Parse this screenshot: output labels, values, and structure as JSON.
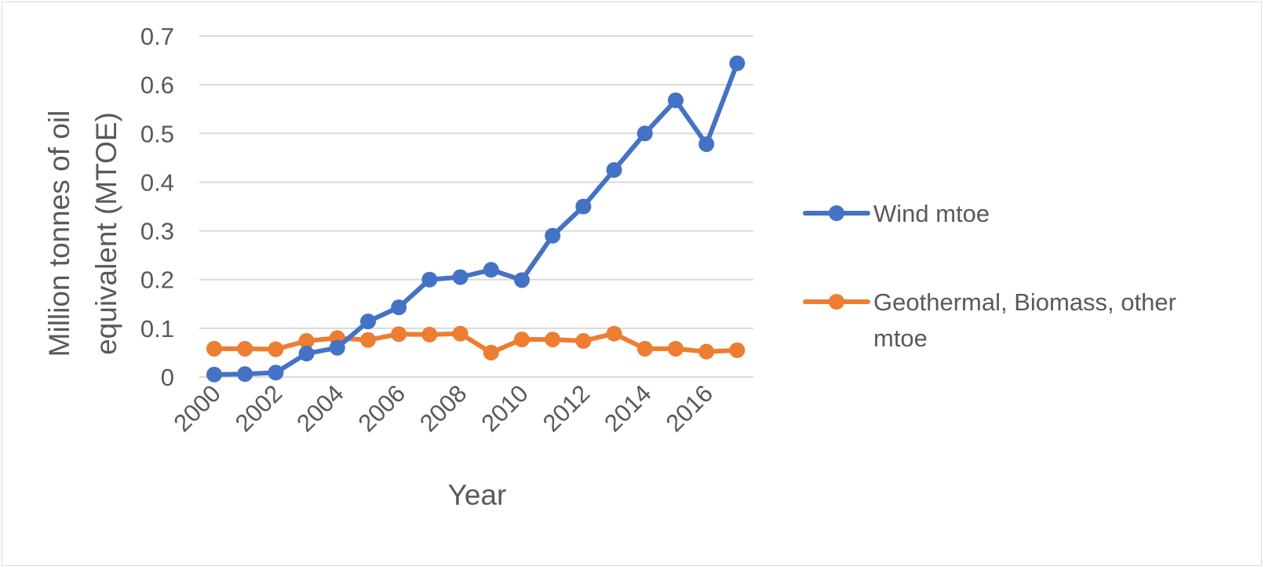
{
  "chart_data": {
    "type": "line",
    "title": "",
    "xlabel": "Year",
    "ylabel_lines": [
      "Million tonnes of oil",
      "equivalent (MTOE)"
    ],
    "x": [
      2000,
      2001,
      2002,
      2003,
      2004,
      2005,
      2006,
      2007,
      2008,
      2009,
      2010,
      2011,
      2012,
      2013,
      2014,
      2015,
      2016,
      2017
    ],
    "x_tick_labels": [
      "2000",
      "2002",
      "2004",
      "2006",
      "2008",
      "2010",
      "2012",
      "2014",
      "2016"
    ],
    "y_tick_labels": [
      "0",
      "0.1",
      "0.2",
      "0.3",
      "0.4",
      "0.5",
      "0.6",
      "0.7"
    ],
    "ylim": [
      0,
      0.7
    ],
    "grid": true,
    "legend_position": "right",
    "series": [
      {
        "name": "Wind  mtoe",
        "legend_lines": [
          "Wind  mtoe"
        ],
        "color": "#4472C4",
        "values": [
          0.005,
          0.006,
          0.009,
          0.048,
          0.06,
          0.114,
          0.143,
          0.2,
          0.205,
          0.22,
          0.199,
          0.29,
          0.35,
          0.425,
          0.5,
          0.568,
          0.478,
          0.644
        ]
      },
      {
        "name": "Geothermal, Biomass, other mtoe",
        "legend_lines": [
          "Geothermal, Biomass, other",
          "mtoe"
        ],
        "color": "#ED7D31",
        "values": [
          0.058,
          0.058,
          0.057,
          0.074,
          0.08,
          0.076,
          0.088,
          0.087,
          0.089,
          0.05,
          0.077,
          0.077,
          0.074,
          0.089,
          0.058,
          0.058,
          0.052,
          0.055
        ]
      }
    ]
  }
}
